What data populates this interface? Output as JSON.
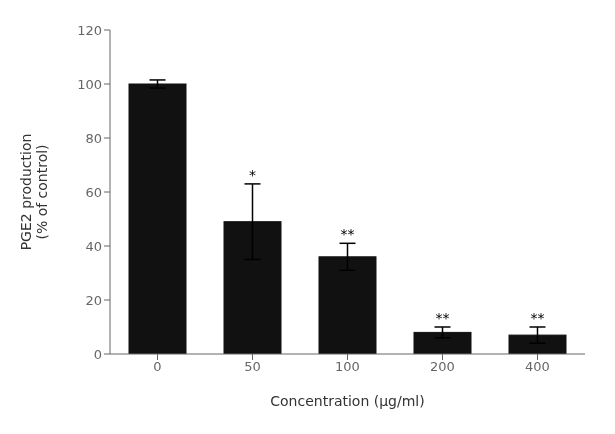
{
  "chart_data": {
    "type": "bar",
    "categories": [
      "0",
      "50",
      "100",
      "200",
      "400"
    ],
    "values": [
      100,
      49,
      36,
      8,
      7
    ],
    "errors": [
      1.5,
      14,
      5,
      2,
      3
    ],
    "significance": [
      null,
      "*",
      "**",
      "**",
      "**"
    ],
    "color": "#111111",
    "xlabel": "Concentration (μg/ml)",
    "ylabel": "PGE2 production\n(% of control)",
    "ylim": [
      0,
      120
    ],
    "yticks": [
      0,
      20,
      40,
      60,
      80,
      100,
      120
    ],
    "grid": false
  }
}
